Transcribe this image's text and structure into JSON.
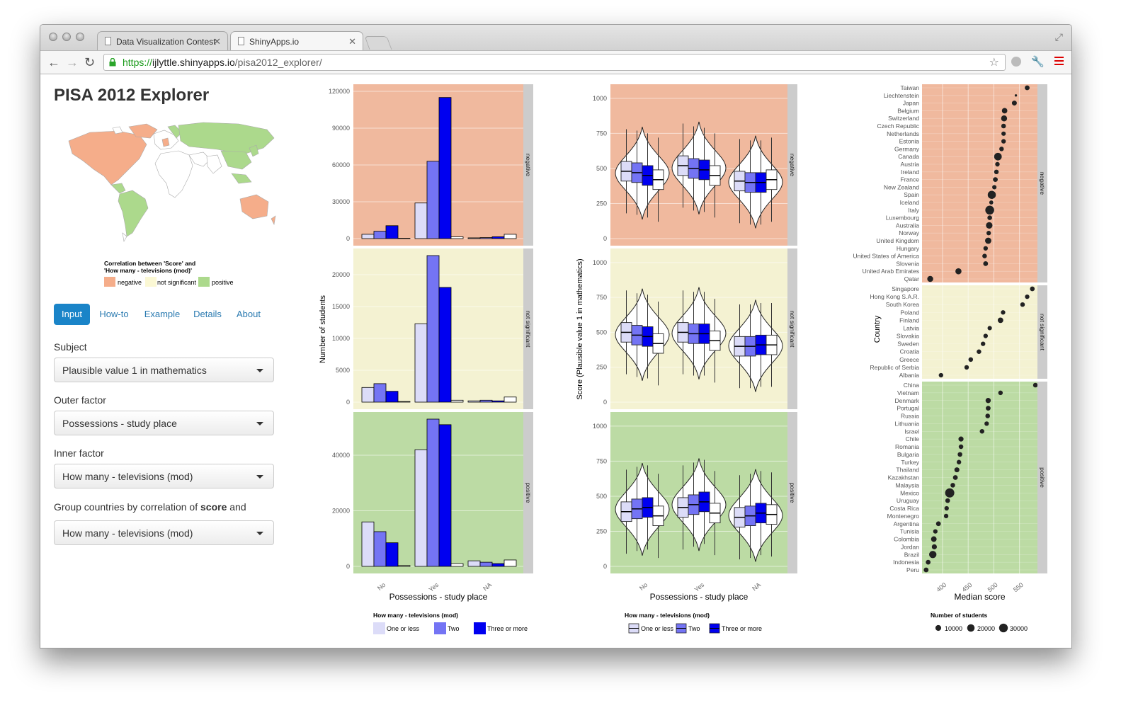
{
  "browser": {
    "tabs": [
      {
        "title": "Data Visualization Contest"
      },
      {
        "title": "ShinyApps.io"
      }
    ],
    "url_scheme": "https://",
    "url_host": "ijlyttle.shinyapps.io",
    "url_path": "/pisa2012_explorer/"
  },
  "app": {
    "title": "PISA 2012 Explorer",
    "map_legend": {
      "title_line1": "Correlation between 'Score' and",
      "title_line2": "'How many - televisions (mod)'",
      "items": [
        {
          "label": "negative",
          "color": "#f5ad8a"
        },
        {
          "label": "not significant",
          "color": "#fbf8d4"
        },
        {
          "label": "positive",
          "color": "#acd98c"
        }
      ]
    },
    "nav": [
      {
        "label": "Input",
        "active": true
      },
      {
        "label": "How-to",
        "active": false
      },
      {
        "label": "Example",
        "active": false
      },
      {
        "label": "Details",
        "active": false
      },
      {
        "label": "About",
        "active": false
      }
    ],
    "form": {
      "subject_label": "Subject",
      "subject_value": "Plausible value 1 in mathematics",
      "outer_label": "Outer factor",
      "outer_value": "Possessions - study place",
      "inner_label": "Inner factor",
      "inner_value": "How many - televisions (mod)",
      "group_label_pre": "Group countries by correlation of ",
      "group_label_bold": "score",
      "group_label_post": " and",
      "group_value": "How many - televisions (mod)"
    }
  },
  "colors": {
    "panel_negative": "#f0b99e",
    "panel_notsig": "#f4f2d2",
    "panel_positive": "#bcdba4",
    "strip": "#cccccc",
    "fill_one": "#dcdcf8",
    "fill_two": "#7474f4",
    "fill_three": "#0000f0"
  },
  "chart_data": [
    {
      "type": "bar",
      "xlabel": "Possessions - study place",
      "ylabel": "Number of students",
      "categories": [
        "No",
        "Yes",
        "NA"
      ],
      "legend_title": "How many - televisions (mod)",
      "legend": [
        "One or less",
        "Two",
        "Three or more"
      ],
      "facets": [
        {
          "name": "negative",
          "ylim": [
            0,
            120000
          ],
          "ticks": [
            0,
            30000,
            60000,
            90000,
            120000
          ],
          "tick_labels": [
            "0",
            "30000",
            "60000",
            "90000",
            "120000"
          ],
          "series": [
            {
              "name": "One or less",
              "values": [
                3500,
                29000,
                600
              ]
            },
            {
              "name": "Two",
              "values": [
                6000,
                63000,
                800
              ]
            },
            {
              "name": "Three or more",
              "values": [
                10500,
                115000,
                1500
              ]
            },
            {
              "name": "NA",
              "values": [
                300,
                1500,
                3500
              ]
            }
          ]
        },
        {
          "name": "not significant",
          "ylim": [
            0,
            23000
          ],
          "ticks": [
            0,
            5000,
            10000,
            15000,
            20000
          ],
          "tick_labels": [
            "0",
            "5000",
            "10000",
            "15000",
            "20000"
          ],
          "series": [
            {
              "name": "One or less",
              "values": [
                2300,
                12300,
                200
              ]
            },
            {
              "name": "Two",
              "values": [
                2900,
                23000,
                300
              ]
            },
            {
              "name": "Three or more",
              "values": [
                1700,
                18000,
                200
              ]
            },
            {
              "name": "NA",
              "values": [
                100,
                300,
                800
              ]
            }
          ]
        },
        {
          "name": "positive",
          "ylim": [
            0,
            53000
          ],
          "ticks": [
            0,
            20000,
            40000
          ],
          "tick_labels": [
            "0",
            "20000",
            "40000"
          ],
          "series": [
            {
              "name": "One or less",
              "values": [
                16000,
                42000,
                2000
              ]
            },
            {
              "name": "Two",
              "values": [
                12500,
                53000,
                1500
              ]
            },
            {
              "name": "Three or more",
              "values": [
                8500,
                51000,
                1000
              ]
            },
            {
              "name": "NA",
              "values": [
                300,
                1000,
                2300
              ]
            }
          ]
        }
      ]
    },
    {
      "type": "violin",
      "xlabel": "Possessions - study place",
      "ylabel": "Score (Plausible value 1 in mathematics)",
      "categories": [
        "No",
        "Yes",
        "NA"
      ],
      "ylim": [
        0,
        1050
      ],
      "ticks": [
        0,
        250,
        500,
        750,
        1000
      ],
      "tick_labels": [
        "0",
        "250",
        "500",
        "750",
        "1000"
      ],
      "legend_title": "How many - televisions (mod)",
      "legend": [
        "One or less",
        "Two",
        "Three or more"
      ],
      "facets": [
        {
          "name": "negative",
          "medians": [
            [
              480,
              470,
              450,
              420
            ],
            [
              520,
              500,
              490,
              450
            ],
            [
              410,
              400,
              400,
              420
            ]
          ]
        },
        {
          "name": "not significant",
          "medians": [
            [
              500,
              480,
              470,
              420
            ],
            [
              500,
              490,
              490,
              440
            ],
            [
              400,
              400,
              410,
              410
            ]
          ]
        },
        {
          "name": "positive",
          "medians": [
            [
              390,
              410,
              420,
              360
            ],
            [
              420,
              440,
              460,
              380
            ],
            [
              350,
              360,
              380,
              370
            ]
          ]
        }
      ]
    },
    {
      "type": "scatter",
      "xlabel": "Median score",
      "ylabel": "Country",
      "xlim": [
        360,
        585
      ],
      "ticks": [
        400,
        450,
        500,
        550
      ],
      "tick_labels": [
        "400",
        "450",
        "500",
        "550"
      ],
      "legend_title": "Number of students",
      "legend": [
        {
          "label": "10000",
          "n": 10000
        },
        {
          "label": "20000",
          "n": 20000
        },
        {
          "label": "30000",
          "n": 30000
        }
      ],
      "facets": [
        {
          "name": "negative",
          "points": [
            {
              "country": "Taiwan",
              "score": 565,
              "n": 6000
            },
            {
              "country": "Liechtenstein",
              "score": 543,
              "n": 300
            },
            {
              "country": "Japan",
              "score": 540,
              "n": 6300
            },
            {
              "country": "Belgium",
              "score": 521,
              "n": 8500
            },
            {
              "country": "Switzerland",
              "score": 520,
              "n": 11200
            },
            {
              "country": "Czech Republic",
              "score": 519,
              "n": 5300
            },
            {
              "country": "Netherlands",
              "score": 519,
              "n": 4400
            },
            {
              "country": "Estonia",
              "score": 519,
              "n": 4700
            },
            {
              "country": "Germany",
              "score": 515,
              "n": 5000
            },
            {
              "country": "Canada",
              "score": 508,
              "n": 21000
            },
            {
              "country": "Austria",
              "score": 507,
              "n": 4800
            },
            {
              "country": "Ireland",
              "score": 505,
              "n": 5000
            },
            {
              "country": "France",
              "score": 503,
              "n": 5700
            },
            {
              "country": "New Zealand",
              "score": 501,
              "n": 4300
            },
            {
              "country": "Spain",
              "score": 496,
              "n": 25000
            },
            {
              "country": "Iceland",
              "score": 495,
              "n": 3500
            },
            {
              "country": "Italy",
              "score": 492,
              "n": 31000
            },
            {
              "country": "Luxembourg",
              "score": 492,
              "n": 5300
            },
            {
              "country": "Australia",
              "score": 491,
              "n": 14000
            },
            {
              "country": "Norway",
              "score": 490,
              "n": 4700
            },
            {
              "country": "United Kingdom",
              "score": 489,
              "n": 12600
            },
            {
              "country": "Hungary",
              "score": 484,
              "n": 4800
            },
            {
              "country": "United States of America",
              "score": 482,
              "n": 5000
            },
            {
              "country": "Slovenia",
              "score": 484,
              "n": 5900
            },
            {
              "country": "United Arab Emirates",
              "score": 431,
              "n": 11500
            },
            {
              "country": "Qatar",
              "score": 376,
              "n": 10900
            }
          ]
        },
        {
          "name": "not significant",
          "points": [
            {
              "country": "Singapore",
              "score": 575,
              "n": 5500
            },
            {
              "country": "Hong Kong S.A.R.",
              "score": 565,
              "n": 4600
            },
            {
              "country": "South Korea",
              "score": 556,
              "n": 5000
            },
            {
              "country": "Poland",
              "score": 518,
              "n": 4600
            },
            {
              "country": "Finland",
              "score": 513,
              "n": 8800
            },
            {
              "country": "Latvia",
              "score": 492,
              "n": 4300
            },
            {
              "country": "Slovakia",
              "score": 484,
              "n": 4700
            },
            {
              "country": "Sweden",
              "score": 479,
              "n": 4700
            },
            {
              "country": "Croatia",
              "score": 471,
              "n": 5000
            },
            {
              "country": "Greece",
              "score": 455,
              "n": 5100
            },
            {
              "country": "Republic of Serbia",
              "score": 447,
              "n": 4700
            },
            {
              "country": "Albania",
              "score": 397,
              "n": 4700
            }
          ]
        },
        {
          "name": "positive",
          "points": [
            {
              "country": "China",
              "score": 581,
              "n": 5200
            },
            {
              "country": "Vietnam",
              "score": 513,
              "n": 4900
            },
            {
              "country": "Denmark",
              "score": 489,
              "n": 7500
            },
            {
              "country": "Portugal",
              "score": 489,
              "n": 5700
            },
            {
              "country": "Russia",
              "score": 488,
              "n": 5200
            },
            {
              "country": "Lithuania",
              "score": 486,
              "n": 4600
            },
            {
              "country": "Israel",
              "score": 477,
              "n": 5100
            },
            {
              "country": "Chile",
              "score": 436,
              "n": 6900
            },
            {
              "country": "Romania",
              "score": 436,
              "n": 5100
            },
            {
              "country": "Bulgaria",
              "score": 434,
              "n": 5300
            },
            {
              "country": "Turkey",
              "score": 432,
              "n": 4800
            },
            {
              "country": "Thailand",
              "score": 428,
              "n": 6600
            },
            {
              "country": "Kazakhstan",
              "score": 425,
              "n": 5800
            },
            {
              "country": "Malaysia",
              "score": 420,
              "n": 5200
            },
            {
              "country": "Mexico",
              "score": 414,
              "n": 33800
            },
            {
              "country": "Uruguay",
              "score": 410,
              "n": 5300
            },
            {
              "country": "Costa Rica",
              "score": 408,
              "n": 4600
            },
            {
              "country": "Montenegro",
              "score": 407,
              "n": 4700
            },
            {
              "country": "Argentina",
              "score": 392,
              "n": 5900
            },
            {
              "country": "Tunisia",
              "score": 386,
              "n": 4400
            },
            {
              "country": "Colombia",
              "score": 383,
              "n": 9100
            },
            {
              "country": "Jordan",
              "score": 384,
              "n": 7000
            },
            {
              "country": "Brazil",
              "score": 381,
              "n": 19200
            },
            {
              "country": "Indonesia",
              "score": 372,
              "n": 5600
            },
            {
              "country": "Peru",
              "score": 368,
              "n": 6000
            }
          ]
        }
      ]
    }
  ]
}
